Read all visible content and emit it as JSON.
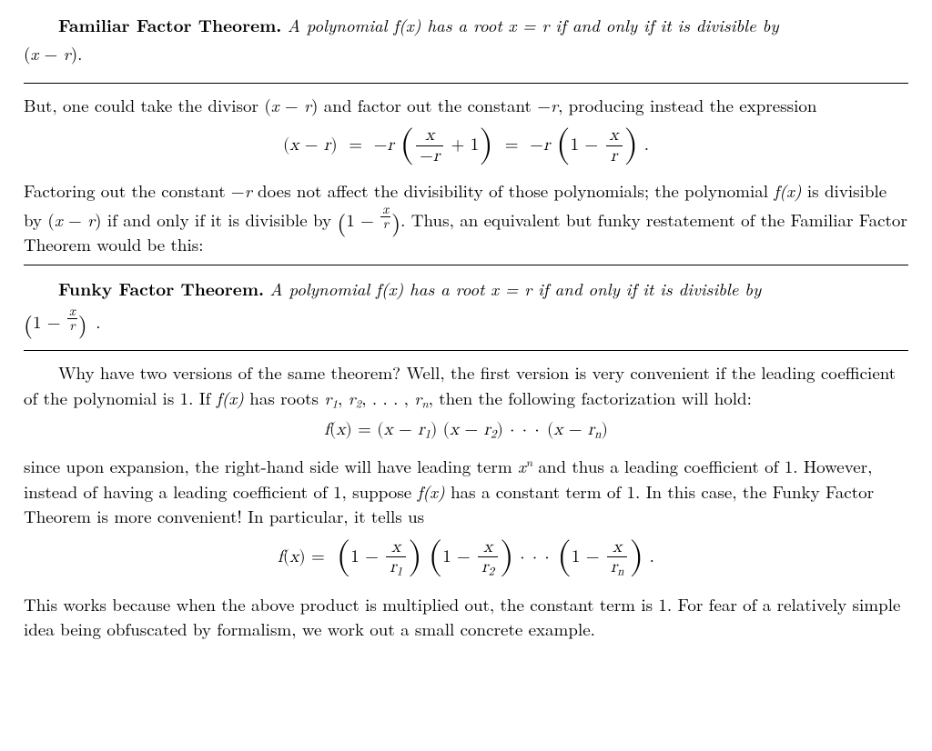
{
  "familiar": {
    "title": "Familiar Factor Theorem.",
    "statement_pre": "A polynomial ",
    "statement_mid": " has a root ",
    "statement_post1": " if and only if it is divisible by",
    "divisor_expr": "(x − r).",
    "fx": "f(x)",
    "root_eq": "x = r"
  },
  "p1": {
    "text_a": "But, one could take the divisor ",
    "text_b": " and factor out the constant ",
    "text_c": ", producing instead the expression",
    "divisor": "(x − r)",
    "const": "−r"
  },
  "eq1": {
    "lhs": "(x − r)",
    "eq": " = ",
    "neg_r": "−r",
    "frac1_num": "x",
    "frac1_den": "−r",
    "plus1": " + 1",
    "one_minus": "1 − ",
    "frac2_num": "x",
    "frac2_den": "r",
    "period": "."
  },
  "p2": {
    "text_a": "Factoring out the constant ",
    "text_b": " does not affect the divisibility of those polynomials; the polynomial ",
    "fx": "f(x)",
    "text_c": " is divisible by ",
    "xr": "(x − r)",
    "text_d": " if and only if it is divisible by ",
    "text_e": " Thus, an equivalent but funky restatement of the Familiar Factor Theorem would be this:",
    "neg_r": "−r",
    "paren_expr_num": "x",
    "paren_expr_den": "r",
    "period": "."
  },
  "funky": {
    "title": "Funky Factor Theorem.",
    "statement_pre": "A polynomial ",
    "statement_mid": " has a root ",
    "statement_post1": " if and only if it is divisible by",
    "fx": "f(x)",
    "root_eq": "x = r",
    "paren_expr_num": "x",
    "paren_expr_den": "r",
    "period": "."
  },
  "p3": {
    "text_a": "Why have two versions of the same theorem? Well, the first version is very convenient if the leading coefficient of the polynomial is 1. If ",
    "fx": "f(x)",
    "text_b": " has roots ",
    "roots_list": "r₁, r₂, . . . , rₙ",
    "text_c": ", then the following factorization will hold:"
  },
  "eq2": {
    "fx": "f(x)",
    "eq": " = ",
    "t1": "(x − r",
    "s1": "1",
    "t2": ") (x − r",
    "s2": "2",
    "t3": ")",
    "dots": " · · · ",
    "t4": "(x − r",
    "sn": "n",
    "t5": ")"
  },
  "p4": {
    "text_a": "since upon expansion, the right-hand side will have leading term ",
    "xn_base": "x",
    "xn_sup": "n",
    "text_b": " and thus a leading coefficient of 1. However, instead of having a leading coefficient of 1, suppose ",
    "fx": "f(x)",
    "text_c": " has a constant term of 1. In this case, the Funky Factor Theorem is more convenient! In particular, it tells us"
  },
  "eq3": {
    "fx": "f(x)",
    "eq": " = ",
    "one_minus": "1 − ",
    "num": "x",
    "den_base": "r",
    "s1": "1",
    "s2": "2",
    "sn": "n",
    "dots": " · · · ",
    "period": "."
  },
  "p5": {
    "text": "This works because when the above product is multiplied out, the constant term is 1. For fear of a relatively simple idea being obfuscated by formalism, we work out a small concrete example."
  }
}
